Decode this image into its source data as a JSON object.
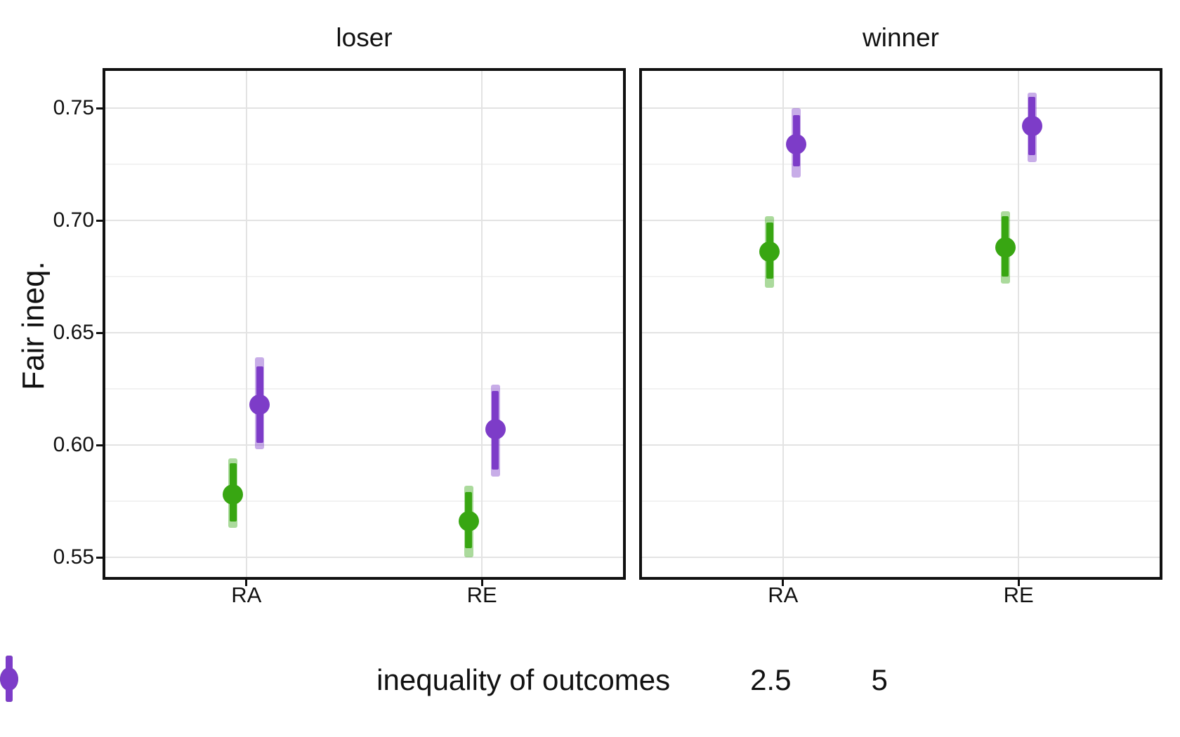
{
  "chart_data": {
    "type": "pointrange",
    "title": "",
    "xlabel": "",
    "ylabel": "Fair ineq.",
    "x_categories": [
      "RA",
      "RE"
    ],
    "ytick_labels": [
      "0.55",
      "0.60",
      "0.65",
      "0.70",
      "0.75"
    ],
    "yticks": [
      0.55,
      0.6,
      0.65,
      0.7,
      0.75
    ],
    "ylim": [
      0.542,
      0.768
    ],
    "grid": {
      "horizontal_major_every": 0.05,
      "horizontal_minor_every": 0.025,
      "vertical_major": "at categories"
    },
    "legend": {
      "title": "inequality of outcomes",
      "position": "bottom",
      "entries": [
        {
          "label": "2.5",
          "color": "#38a612"
        },
        {
          "label": "5",
          "color": "#7d3cc8"
        }
      ]
    },
    "facets": [
      {
        "title": "loser",
        "points": [
          {
            "x": "RA",
            "group": "2.5",
            "y": 0.578,
            "inner": [
              0.566,
              0.592
            ],
            "outer": [
              0.563,
              0.594
            ]
          },
          {
            "x": "RA",
            "group": "5",
            "y": 0.618,
            "inner": [
              0.601,
              0.635
            ],
            "outer": [
              0.598,
              0.639
            ]
          },
          {
            "x": "RE",
            "group": "2.5",
            "y": 0.566,
            "inner": [
              0.554,
              0.579
            ],
            "outer": [
              0.55,
              0.582
            ]
          },
          {
            "x": "RE",
            "group": "5",
            "y": 0.607,
            "inner": [
              0.589,
              0.624
            ],
            "outer": [
              0.586,
              0.627
            ]
          }
        ]
      },
      {
        "title": "winner",
        "points": [
          {
            "x": "RA",
            "group": "2.5",
            "y": 0.686,
            "inner": [
              0.674,
              0.699
            ],
            "outer": [
              0.67,
              0.702
            ]
          },
          {
            "x": "RA",
            "group": "5",
            "y": 0.734,
            "inner": [
              0.724,
              0.747
            ],
            "outer": [
              0.719,
              0.75
            ]
          },
          {
            "x": "RE",
            "group": "2.5",
            "y": 0.688,
            "inner": [
              0.675,
              0.702
            ],
            "outer": [
              0.672,
              0.704
            ]
          },
          {
            "x": "RE",
            "group": "5",
            "y": 0.742,
            "inner": [
              0.729,
              0.755
            ],
            "outer": [
              0.726,
              0.757
            ]
          }
        ]
      }
    ]
  }
}
